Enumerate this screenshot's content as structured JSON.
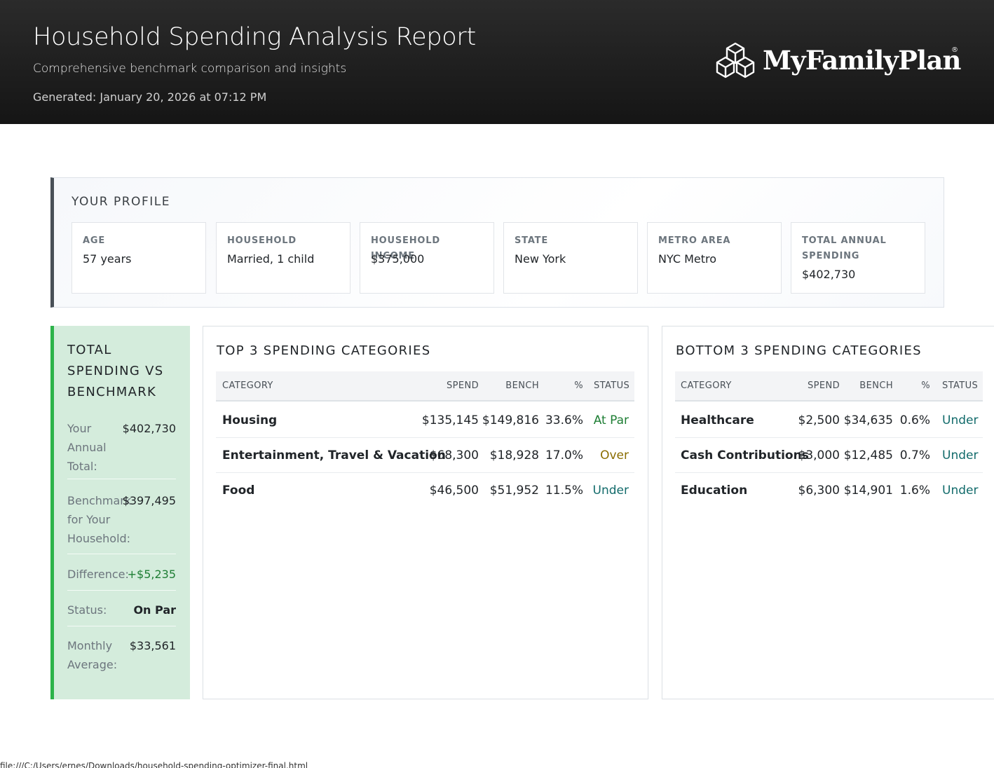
{
  "header": {
    "title": "Household Spending Analysis Report",
    "subtitle": "Comprehensive benchmark comparison and insights",
    "generated": "Generated: January 20, 2026 at 07:12 PM",
    "logo_text": "MyFamilyPlan",
    "logo_reg": "®"
  },
  "profile": {
    "title": "YOUR PROFILE",
    "cards": [
      {
        "label": "AGE",
        "value": "57 years"
      },
      {
        "label": "HOUSEHOLD",
        "value": "Married, 1 child"
      },
      {
        "label": "HOUSEHOLD INCOME",
        "value": "$375,000"
      },
      {
        "label": "STATE",
        "value": "New York"
      },
      {
        "label": "METRO AREA",
        "value": "NYC Metro"
      },
      {
        "label": "TOTAL ANNUAL SPENDING",
        "value": "$402,730"
      }
    ]
  },
  "total": {
    "title": "TOTAL SPENDING VS BENCHMARK",
    "rows": [
      {
        "label": "Your Annual Total:",
        "value": "$402,730"
      },
      {
        "label": "Benchmark for Your Household:",
        "value": "$397,495"
      },
      {
        "label": "Difference:",
        "value": "+$5,235"
      },
      {
        "label": "Status:",
        "value": "On Par"
      },
      {
        "label": "Monthly Average:",
        "value": "$33,561"
      }
    ]
  },
  "top": {
    "title": "TOP 3 SPENDING CATEGORIES",
    "headers": {
      "category": "CATEGORY",
      "spend": "SPEND",
      "bench": "BENCH",
      "pct": "%",
      "status": "STATUS"
    },
    "rows": [
      {
        "category": "Housing",
        "spend": "$135,145",
        "bench": "$149,816",
        "pct": "33.6%",
        "status": "At Par"
      },
      {
        "category": "Entertainment, Travel & Vacation",
        "spend": "$68,300",
        "bench": "$18,928",
        "pct": "17.0%",
        "status": "Over"
      },
      {
        "category": "Food",
        "spend": "$46,500",
        "bench": "$51,952",
        "pct": "11.5%",
        "status": "Under"
      }
    ]
  },
  "bottom": {
    "title": "BOTTOM 3 SPENDING CATEGORIES",
    "headers": {
      "category": "CATEGORY",
      "spend": "SPEND",
      "bench": "BENCH",
      "pct": "%",
      "status": "STATUS"
    },
    "rows": [
      {
        "category": "Healthcare",
        "spend": "$2,500",
        "bench": "$34,635",
        "pct": "0.6%",
        "status": "Under"
      },
      {
        "category": "Cash Contributions",
        "spend": "$3,000",
        "bench": "$12,485",
        "pct": "0.7%",
        "status": "Under"
      },
      {
        "category": "Education",
        "spend": "$6,300",
        "bench": "$14,901",
        "pct": "1.6%",
        "status": "Under"
      }
    ]
  },
  "colors": {
    "header_bg": "#1c1c1c",
    "profile_accent": "#495057",
    "total_bg": "#d4ecdc",
    "total_accent": "#2db34a",
    "status_at_par": "#1e7e34",
    "status_over": "#8a6d00",
    "status_under": "#126b6b"
  },
  "icons": {
    "logo": "hexagon-cube-icon"
  },
  "footer": {
    "url": "file:///C:/Users/ernes/Downloads/household-spending-optimizer-final.html"
  }
}
